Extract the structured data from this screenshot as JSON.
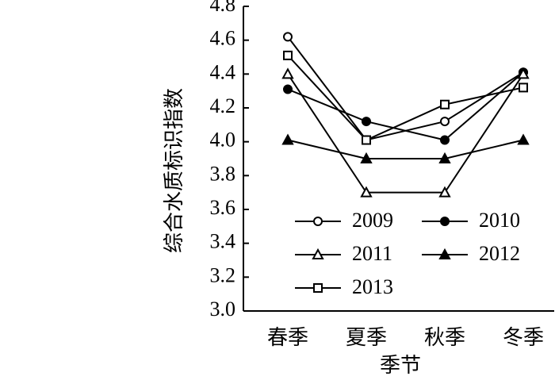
{
  "chart_data": {
    "type": "line",
    "y_label": "综合水质标识指数",
    "x_label": "季节",
    "categories": [
      "春季",
      "夏季",
      "秋季",
      "冬季"
    ],
    "series": [
      {
        "name": "2009",
        "color": "#000000",
        "marker": "circle-open",
        "values": [
          4.62,
          4.01,
          4.12,
          4.41
        ]
      },
      {
        "name": "2010",
        "color": "#000000",
        "marker": "circle-filled",
        "values": [
          4.31,
          4.12,
          4.01,
          4.41
        ]
      },
      {
        "name": "2011",
        "color": "#000000",
        "marker": "triangle-open",
        "values": [
          4.4,
          3.7,
          3.7,
          4.4
        ]
      },
      {
        "name": "2012",
        "color": "#000000",
        "marker": "triangle-filled",
        "values": [
          4.01,
          3.9,
          3.9,
          4.01
        ]
      },
      {
        "name": "2013",
        "color": "#000000",
        "marker": "square-open",
        "values": [
          4.51,
          4.01,
          4.22,
          4.32
        ]
      }
    ],
    "ylim": [
      3.0,
      4.8
    ],
    "yticks": [
      {
        "value": 3,
        "label": "3.0"
      },
      3.2,
      3.4,
      3.6,
      3.8,
      {
        "value": 4,
        "label": "4.0"
      },
      4.2,
      4.4,
      4.6,
      4.8
    ],
    "grid": false,
    "legend": "lower-right"
  }
}
